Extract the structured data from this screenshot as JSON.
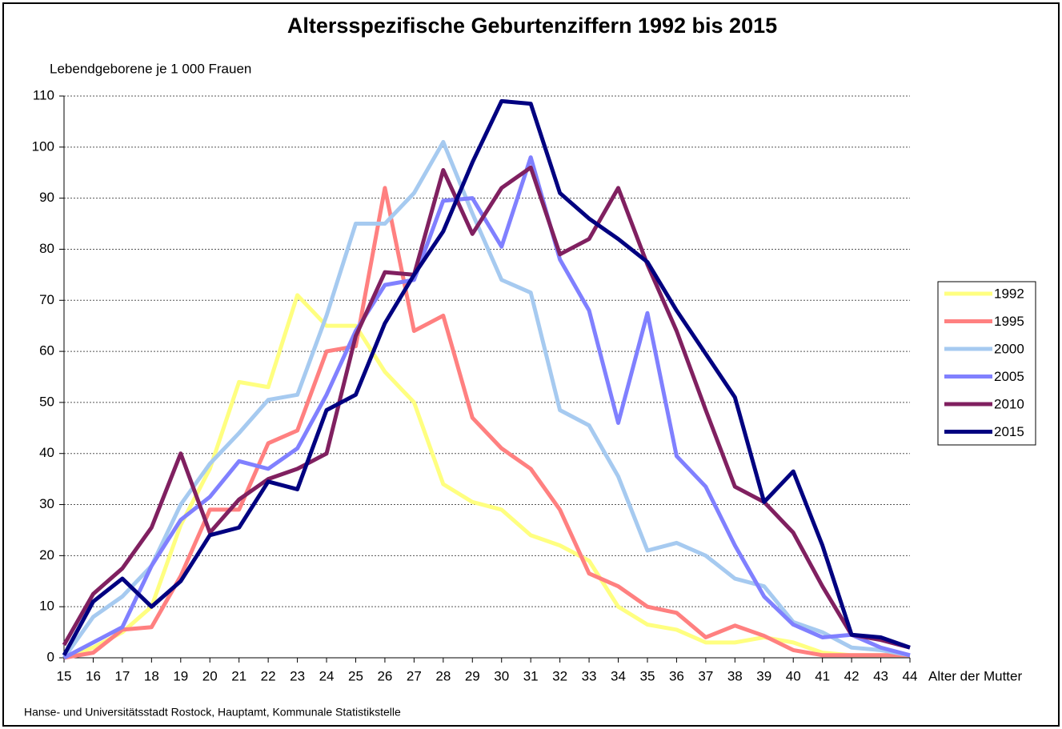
{
  "chart_data": {
    "type": "line",
    "title": "Altersspezifische Geburtenziffern 1992 bis 2015",
    "y_label": "Lebendgeborene je 1 000 Frauen",
    "x_label": "Alter der Mutter",
    "source": "Hanse- und Universitätsstadt Rostock, Hauptamt, Kommunale Statistikstelle",
    "x": [
      15,
      16,
      17,
      18,
      19,
      20,
      21,
      22,
      23,
      24,
      25,
      26,
      27,
      28,
      29,
      30,
      31,
      32,
      33,
      34,
      35,
      36,
      37,
      38,
      39,
      40,
      41,
      42,
      43,
      44
    ],
    "xlim": [
      15,
      44
    ],
    "xticks": [
      15,
      16,
      17,
      18,
      19,
      20,
      21,
      22,
      23,
      24,
      25,
      26,
      27,
      28,
      29,
      30,
      31,
      32,
      33,
      34,
      35,
      36,
      37,
      38,
      39,
      40,
      41,
      42,
      43,
      44
    ],
    "ylim": [
      0,
      110
    ],
    "yticks": [
      0,
      10,
      20,
      30,
      40,
      50,
      60,
      70,
      80,
      90,
      100,
      110
    ],
    "grid": true,
    "legend": "right",
    "series": [
      {
        "name": "1992",
        "color": "#ffff80",
        "values": [
          0,
          2,
          5,
          10,
          26,
          37,
          54,
          53,
          71,
          65,
          65,
          56,
          50,
          34,
          30.5,
          29,
          24,
          22,
          19,
          10,
          6.5,
          5.5,
          3,
          3,
          4,
          3,
          1,
          0.5,
          0.5,
          0.5
        ]
      },
      {
        "name": "1995",
        "color": "#ff8080",
        "values": [
          0,
          1,
          5.5,
          6,
          16,
          29,
          29,
          42,
          44.5,
          60,
          61,
          92,
          64,
          67,
          47,
          41,
          37,
          29,
          16.5,
          14,
          10,
          8.8,
          4,
          6.3,
          4.3,
          1.5,
          0.5,
          0.5,
          0.5,
          0.5
        ]
      },
      {
        "name": "2000",
        "color": "#a6caf0",
        "values": [
          0,
          8,
          12,
          18,
          30,
          38,
          44,
          50.5,
          51.5,
          67,
          85,
          85,
          91,
          101,
          87,
          74,
          71.5,
          48.5,
          45.5,
          35.5,
          21,
          22.5,
          20,
          15.5,
          14,
          7,
          5,
          2,
          1.5,
          0.5
        ]
      },
      {
        "name": "2005",
        "color": "#8080ff",
        "values": [
          0,
          3,
          6,
          18,
          27,
          31.5,
          38.5,
          37,
          41,
          51.5,
          64,
          73,
          74,
          89.5,
          90,
          80.5,
          98,
          78,
          68,
          46,
          67.5,
          39.5,
          33.5,
          22,
          12,
          6.5,
          4,
          4.5,
          2,
          0.5
        ]
      },
      {
        "name": "2010",
        "color": "#802060",
        "values": [
          2.5,
          12.5,
          17.5,
          25.5,
          40,
          24.5,
          31,
          35,
          37,
          40,
          63,
          75.5,
          75,
          95.5,
          83,
          92,
          96,
          79,
          82,
          92,
          77,
          64,
          48.5,
          33.5,
          30.5,
          24.5,
          14,
          4.5,
          3.5,
          2
        ]
      },
      {
        "name": "2015",
        "color": "#000080",
        "values": [
          0.5,
          11,
          15.5,
          10,
          15,
          24,
          25.5,
          34.5,
          33,
          48.5,
          51.5,
          65.5,
          75,
          83.5,
          97,
          109,
          108.5,
          91,
          86,
          82,
          77.5,
          68,
          59.5,
          51,
          30.5,
          36.5,
          22,
          4.5,
          4,
          2
        ]
      }
    ]
  }
}
